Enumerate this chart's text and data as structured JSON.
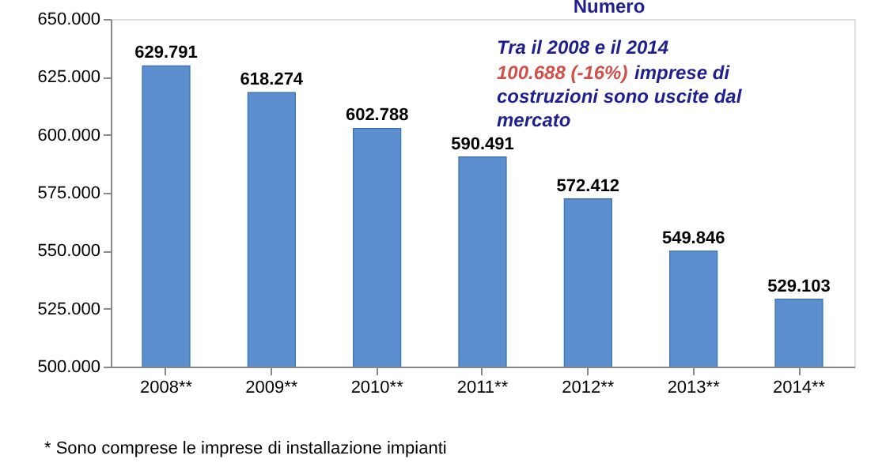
{
  "chart_data": {
    "type": "bar",
    "title": "Numero",
    "categories": [
      "2008**",
      "2009**",
      "2010**",
      "2011**",
      "2012**",
      "2013**",
      "2014**"
    ],
    "values": [
      629791,
      618274,
      602788,
      590491,
      572412,
      549846,
      529103
    ],
    "value_labels": [
      "629.791",
      "618.274",
      "602.788",
      "590.491",
      "572.412",
      "549.846",
      "529.103"
    ],
    "color": "#5b8fd0",
    "ylim": [
      500000,
      650000
    ],
    "yticks": [
      {
        "value": 500000,
        "label": "500.000"
      },
      {
        "value": 525000,
        "label": "525.000"
      },
      {
        "value": 550000,
        "label": "550.000"
      },
      {
        "value": 575000,
        "label": "575.000"
      },
      {
        "value": 600000,
        "label": "600.000"
      },
      {
        "value": 625000,
        "label": "625.000"
      },
      {
        "value": 650000,
        "label": "650.000"
      }
    ],
    "grid": false,
    "annotations": [
      "Tra il 2008 e il 2014",
      "100.688 (-16%)",
      "imprese  di",
      "costruzioni sono uscite dal",
      "mercato",
      "* Sono comprese le imprese di installazione impianti"
    ]
  }
}
